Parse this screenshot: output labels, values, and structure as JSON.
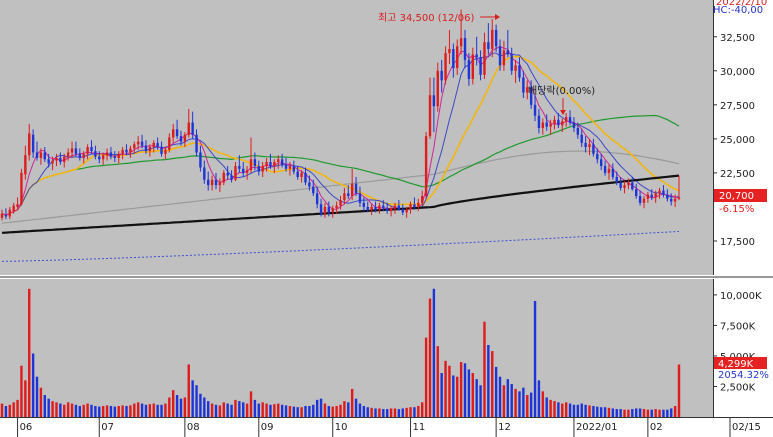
{
  "chart_data": {
    "type": "candlestick",
    "price_panel": {
      "y_ticks": [
        "32,500",
        "30,000",
        "27,500",
        "25,000",
        "22,500",
        "17,500"
      ],
      "y_tick_values": [
        32500,
        30000,
        27500,
        25000,
        22500,
        17500
      ],
      "ylim": [
        15000,
        35200
      ],
      "top_right_text_1": "2022/2/10",
      "top_right_text_2": "HC:-40,00",
      "annotation_high": "최고 34,500 (12/06)",
      "annotation_dividend": "배당락(0.00%)",
      "current_price": "20,700",
      "current_change": "-6.15%",
      "ma_colors": {
        "ma5": "#d0279a",
        "ma10": "#3b49c9",
        "ma20": "#f4b60c",
        "ma60": "#1f9a2e",
        "ma120": "#9a9a9a",
        "ma240": "#111111",
        "ma480": "#3a4ed0"
      }
    },
    "volume_panel": {
      "y_ticks": [
        "10,000K",
        "7,500K",
        "5,000K",
        "2,500K"
      ],
      "y_tick_values": [
        10000,
        7500,
        5000,
        2500
      ],
      "ylim": [
        0,
        11300
      ],
      "current_volume": "4,299K",
      "volume_ratio": "2054.32%"
    },
    "x_ticks": [
      "06",
      "07",
      "08",
      "09",
      "10",
      "11",
      "12",
      "2022/01",
      "02",
      "02/15"
    ],
    "x_tick_index": [
      4,
      25,
      47,
      66,
      85,
      105,
      127,
      147,
      166,
      186
    ],
    "candles": [
      [
        19200,
        19800,
        19000,
        19500,
        1100
      ],
      [
        19400,
        19900,
        19100,
        19300,
        900
      ],
      [
        19300,
        20000,
        19100,
        19800,
        1000
      ],
      [
        19700,
        20300,
        19500,
        20100,
        1200
      ],
      [
        20000,
        20700,
        19800,
        20200,
        1400
      ],
      [
        20200,
        22800,
        20100,
        22500,
        4200
      ],
      [
        22400,
        24500,
        22000,
        23800,
        3000
      ],
      [
        23800,
        26100,
        23400,
        25400,
        10500
      ],
      [
        25300,
        25700,
        23600,
        24000,
        5200
      ],
      [
        24000,
        24800,
        23400,
        23600,
        3300
      ],
      [
        23600,
        24300,
        23100,
        24000,
        2400
      ],
      [
        24000,
        24400,
        23300,
        23500,
        1800
      ],
      [
        23500,
        23900,
        22900,
        23200,
        1500
      ],
      [
        23200,
        23700,
        22700,
        23400,
        1300
      ],
      [
        23400,
        23900,
        23000,
        23600,
        1200
      ],
      [
        23600,
        24000,
        23100,
        23300,
        1100
      ],
      [
        23300,
        23900,
        22900,
        23700,
        1000
      ],
      [
        23700,
        24300,
        23400,
        24000,
        1200
      ],
      [
        24000,
        24800,
        23600,
        24300,
        1100
      ],
      [
        24300,
        24800,
        23700,
        23900,
        1000
      ],
      [
        23900,
        24300,
        23400,
        23600,
        900
      ],
      [
        23600,
        24100,
        23200,
        23900,
        1000
      ],
      [
        23900,
        24600,
        23500,
        24400,
        1100
      ],
      [
        24400,
        24900,
        23900,
        24100,
        1000
      ],
      [
        24100,
        24500,
        23500,
        23700,
        900
      ],
      [
        23700,
        24100,
        23200,
        23500,
        850
      ],
      [
        23500,
        24000,
        23100,
        23800,
        900
      ],
      [
        23800,
        24300,
        23400,
        24000,
        950
      ],
      [
        24000,
        24400,
        23500,
        23700,
        900
      ],
      [
        23700,
        24100,
        23300,
        23600,
        850
      ],
      [
        23600,
        24100,
        23200,
        23900,
        900
      ],
      [
        23900,
        24400,
        23500,
        24200,
        950
      ],
      [
        24200,
        24600,
        23800,
        24000,
        900
      ],
      [
        24000,
        24500,
        23600,
        24300,
        950
      ],
      [
        24300,
        24800,
        23900,
        24600,
        1100
      ],
      [
        24600,
        25200,
        24200,
        24800,
        1200
      ],
      [
        24800,
        25300,
        24300,
        24500,
        1100
      ],
      [
        24500,
        24900,
        23900,
        24100,
        1000
      ],
      [
        24100,
        24600,
        23700,
        24400,
        1050
      ],
      [
        24400,
        24900,
        24000,
        24700,
        1100
      ],
      [
        24700,
        25100,
        24200,
        24400,
        1000
      ],
      [
        24400,
        24800,
        23700,
        23900,
        1000
      ],
      [
        23900,
        24400,
        23500,
        24200,
        1100
      ],
      [
        24200,
        25400,
        24000,
        25100,
        1600
      ],
      [
        25100,
        26100,
        24700,
        25700,
        2200
      ],
      [
        25700,
        26400,
        25000,
        25200,
        1800
      ],
      [
        25200,
        25600,
        24500,
        24800,
        1500
      ],
      [
        24800,
        25500,
        24400,
        25300,
        1600
      ],
      [
        25300,
        27200,
        25100,
        26200,
        4300
      ],
      [
        26200,
        27000,
        25000,
        25300,
        3000
      ],
      [
        25300,
        25700,
        23700,
        24000,
        2600
      ],
      [
        24000,
        24500,
        22600,
        22900,
        1900
      ],
      [
        22900,
        23400,
        21700,
        22000,
        1600
      ],
      [
        22000,
        22600,
        21200,
        21600,
        1300
      ],
      [
        21600,
        22300,
        21200,
        22000,
        1100
      ],
      [
        22000,
        22500,
        21300,
        21600,
        1000
      ],
      [
        21600,
        22100,
        21100,
        21800,
        950
      ],
      [
        21800,
        22700,
        21600,
        22500,
        1200
      ],
      [
        22500,
        23000,
        22000,
        22300,
        1100
      ],
      [
        22300,
        22700,
        21800,
        22000,
        1000
      ],
      [
        22000,
        23300,
        21900,
        23000,
        1400
      ],
      [
        23000,
        23800,
        22500,
        22800,
        1300
      ],
      [
        22800,
        23300,
        22200,
        22500,
        1200
      ],
      [
        22500,
        23000,
        22000,
        22700,
        1100
      ],
      [
        22700,
        25100,
        22500,
        23500,
        2100
      ],
      [
        23500,
        24000,
        22700,
        23000,
        1400
      ],
      [
        23000,
        23400,
        22300,
        22600,
        1100
      ],
      [
        22600,
        23300,
        22200,
        23000,
        1200
      ],
      [
        23000,
        23600,
        22600,
        23300,
        1100
      ],
      [
        23300,
        23900,
        22800,
        23000,
        1000
      ],
      [
        23000,
        23500,
        22500,
        23300,
        1050
      ],
      [
        23300,
        23800,
        22800,
        23500,
        1100
      ],
      [
        23500,
        23900,
        22900,
        23100,
        1000
      ],
      [
        23100,
        23600,
        22600,
        22800,
        950
      ],
      [
        22800,
        23300,
        22300,
        23000,
        900
      ],
      [
        23000,
        23400,
        22400,
        22600,
        850
      ],
      [
        22600,
        23000,
        22000,
        22200,
        800
      ],
      [
        22200,
        22700,
        21800,
        22500,
        800
      ],
      [
        22500,
        22900,
        21600,
        21800,
        900
      ],
      [
        21800,
        22300,
        21200,
        21500,
        900
      ],
      [
        21500,
        22000,
        20800,
        21000,
        1000
      ],
      [
        21000,
        21500,
        19900,
        20200,
        1400
      ],
      [
        20200,
        20600,
        19300,
        19500,
        1500
      ],
      [
        19500,
        20300,
        19200,
        20000,
        1100
      ],
      [
        20000,
        20400,
        19300,
        19600,
        900
      ],
      [
        19600,
        20100,
        19200,
        19900,
        850
      ],
      [
        19900,
        20400,
        19500,
        20100,
        900
      ],
      [
        20100,
        20800,
        19800,
        20500,
        1000
      ],
      [
        20500,
        21400,
        20200,
        21000,
        1300
      ],
      [
        21000,
        21600,
        20600,
        20800,
        1200
      ],
      [
        20800,
        22800,
        20500,
        21700,
        2300
      ],
      [
        21700,
        22200,
        20800,
        21000,
        1500
      ],
      [
        21000,
        21500,
        20000,
        20300,
        1100
      ],
      [
        20300,
        20700,
        19700,
        20000,
        900
      ],
      [
        20000,
        20400,
        19600,
        19800,
        800
      ],
      [
        19800,
        20200,
        19400,
        20000,
        750
      ],
      [
        20000,
        20400,
        19600,
        19800,
        700
      ],
      [
        19800,
        20300,
        19500,
        20100,
        700
      ],
      [
        20100,
        20500,
        19700,
        19900,
        650
      ],
      [
        19900,
        20300,
        19500,
        19700,
        650
      ],
      [
        19700,
        20100,
        19300,
        19900,
        700
      ],
      [
        19900,
        20300,
        19500,
        20100,
        700
      ],
      [
        20100,
        20500,
        19700,
        19800,
        650
      ],
      [
        19800,
        20200,
        19400,
        19600,
        700
      ],
      [
        19600,
        20000,
        19200,
        19800,
        750
      ],
      [
        19800,
        20400,
        19500,
        20200,
        800
      ],
      [
        20200,
        20700,
        19800,
        20000,
        800
      ],
      [
        20000,
        20600,
        19700,
        20300,
        900
      ],
      [
        20300,
        21200,
        20100,
        20800,
        1200
      ],
      [
        20800,
        25500,
        20600,
        25200,
        6500
      ],
      [
        25200,
        29500,
        25000,
        28200,
        9700
      ],
      [
        28200,
        29500,
        25500,
        27400,
        10500
      ],
      [
        27400,
        30600,
        27000,
        30000,
        5800
      ],
      [
        30000,
        30800,
        28400,
        29300,
        3600
      ],
      [
        29300,
        31800,
        29000,
        31300,
        4600
      ],
      [
        31300,
        33000,
        30500,
        31600,
        4200
      ],
      [
        31600,
        32000,
        29500,
        30200,
        3400
      ],
      [
        30200,
        32300,
        29700,
        31800,
        3300
      ],
      [
        31800,
        34500,
        31200,
        32400,
        4500
      ],
      [
        32400,
        33000,
        30200,
        30800,
        4400
      ],
      [
        30800,
        31300,
        28900,
        29400,
        3900
      ],
      [
        29400,
        31700,
        29000,
        31200,
        3600
      ],
      [
        31200,
        32500,
        30400,
        31000,
        3100
      ],
      [
        31000,
        31500,
        29300,
        29700,
        2600
      ],
      [
        29700,
        32800,
        29400,
        32100,
        7800
      ],
      [
        32100,
        33500,
        31200,
        31600,
        5900
      ],
      [
        31600,
        33800,
        31000,
        33000,
        5400
      ],
      [
        33000,
        33400,
        31400,
        31800,
        4100
      ],
      [
        31800,
        32300,
        30000,
        30400,
        3300
      ],
      [
        30400,
        32200,
        30000,
        31500,
        2600
      ],
      [
        31500,
        33000,
        31000,
        31200,
        3100
      ],
      [
        31200,
        31700,
        29700,
        30000,
        2700
      ],
      [
        30000,
        30800,
        29100,
        30400,
        2300
      ],
      [
        30400,
        31000,
        29200,
        29500,
        2100
      ],
      [
        29500,
        30000,
        28000,
        28400,
        2400
      ],
      [
        28400,
        29300,
        27900,
        28800,
        1800
      ],
      [
        28800,
        29300,
        27200,
        27500,
        2000
      ],
      [
        27500,
        28200,
        26300,
        26700,
        9500
      ],
      [
        26700,
        27200,
        25400,
        25800,
        3000
      ],
      [
        25800,
        26500,
        25300,
        26200,
        2100
      ],
      [
        26200,
        26800,
        25600,
        25900,
        1600
      ],
      [
        25900,
        26400,
        25300,
        26100,
        1400
      ],
      [
        26100,
        26700,
        25700,
        26400,
        1300
      ],
      [
        26400,
        26900,
        25800,
        26000,
        1200
      ],
      [
        26000,
        26500,
        25500,
        26300,
        1100
      ],
      [
        26300,
        26900,
        25900,
        26600,
        1200
      ],
      [
        26600,
        27100,
        26000,
        26200,
        1100
      ],
      [
        26200,
        26600,
        25500,
        25800,
        1000
      ],
      [
        25800,
        26200,
        25000,
        25300,
        1000
      ],
      [
        25300,
        25700,
        24400,
        24700,
        1100
      ],
      [
        24700,
        25200,
        24000,
        24400,
        1000
      ],
      [
        24400,
        25000,
        23800,
        24600,
        950
      ],
      [
        24600,
        25000,
        23700,
        23900,
        900
      ],
      [
        23900,
        24300,
        23200,
        23500,
        850
      ],
      [
        23500,
        23900,
        22700,
        23000,
        800
      ],
      [
        23000,
        23400,
        22300,
        22500,
        800
      ],
      [
        22500,
        23100,
        22000,
        22800,
        750
      ],
      [
        22800,
        23200,
        22000,
        22200,
        700
      ],
      [
        22200,
        22600,
        21600,
        21800,
        650
      ],
      [
        21800,
        22200,
        21200,
        21400,
        650
      ],
      [
        21400,
        21900,
        21000,
        21600,
        600
      ],
      [
        21600,
        22100,
        21300,
        21800,
        600
      ],
      [
        21800,
        22200,
        21200,
        21300,
        650
      ],
      [
        21300,
        21700,
        20600,
        20800,
        700
      ],
      [
        20800,
        21200,
        20100,
        20300,
        700
      ],
      [
        20300,
        20800,
        19900,
        20600,
        650
      ],
      [
        20600,
        21100,
        20300,
        20900,
        600
      ],
      [
        20900,
        21300,
        20500,
        20700,
        600
      ],
      [
        20700,
        21200,
        20300,
        21000,
        650
      ],
      [
        21000,
        21400,
        20600,
        21200,
        600
      ],
      [
        21200,
        21600,
        20700,
        20900,
        600
      ],
      [
        20900,
        21300,
        20400,
        20600,
        600
      ],
      [
        20600,
        21000,
        20100,
        20400,
        700
      ],
      [
        20400,
        20900,
        20000,
        20600,
        900
      ],
      [
        20600,
        22300,
        20500,
        20700,
        4299
      ]
    ]
  }
}
